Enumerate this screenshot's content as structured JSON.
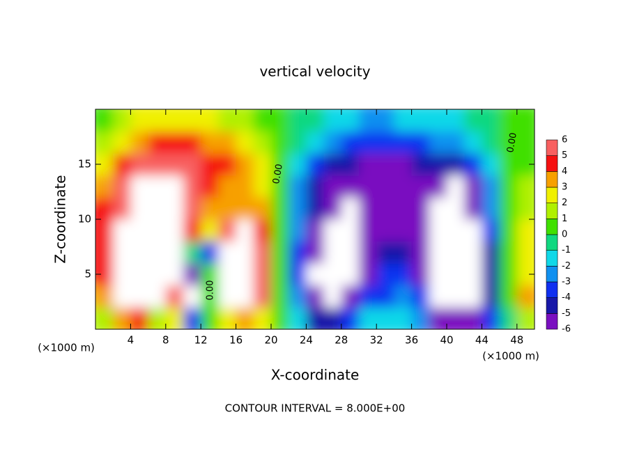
{
  "chart_data": {
    "type": "heatmap",
    "title": "vertical velocity",
    "x_label": "X-coordinate",
    "y_label": "Z-coordinate",
    "x_unit": "(×1000 m)",
    "footer": "CONTOUR INTERVAL = 8.000E+00",
    "contour_labels": [
      "0.00",
      "0.00",
      "0.00"
    ],
    "xlim": [
      0,
      50
    ],
    "ylim": [
      0,
      20
    ],
    "xticks": [
      4,
      8,
      12,
      16,
      20,
      24,
      28,
      32,
      36,
      40,
      44,
      48
    ],
    "yticks": [
      5,
      10,
      15
    ],
    "x": [
      1,
      3,
      5,
      7,
      9,
      11,
      13,
      15,
      17,
      19,
      21,
      23,
      25,
      27,
      29,
      31,
      33,
      35,
      37,
      39,
      41,
      43,
      45,
      47,
      49
    ],
    "y": [
      1,
      3,
      5,
      7,
      9,
      11,
      13,
      15,
      17,
      19
    ],
    "z": [
      [
        2,
        4,
        5,
        2,
        3,
        -3,
        1,
        3,
        4,
        3,
        0.5,
        -1,
        -4,
        -4,
        -3,
        -1,
        -1,
        -1,
        -2,
        -5,
        -5,
        -5,
        -3,
        0,
        2
      ],
      [
        4,
        7,
        8,
        8,
        6,
        -8,
        1,
        7,
        8,
        6,
        1,
        -2,
        -6,
        -7,
        -6,
        -3,
        -3,
        -2,
        -3,
        -7,
        -7,
        -7,
        -4,
        0.5,
        4
      ],
      [
        5,
        7,
        8,
        8,
        7,
        -5,
        1,
        7,
        8,
        6,
        1,
        -3,
        -7,
        -8,
        -8,
        -5,
        -3,
        -3,
        -5,
        -8,
        -8,
        -8,
        -4,
        0.5,
        3
      ],
      [
        5,
        7,
        8,
        8,
        7,
        0,
        -3,
        7,
        8,
        6,
        1,
        -3,
        -5,
        -8,
        -8,
        -5,
        -4,
        -4.5,
        -6,
        -8,
        -8,
        -8,
        -4,
        0.5,
        3
      ],
      [
        5,
        7,
        8,
        8,
        8,
        5,
        3,
        6,
        8,
        5,
        1,
        -2.5,
        -5,
        -7,
        -8,
        -5.5,
        -5,
        -5,
        -5,
        -8,
        -8,
        -7,
        -3,
        0.5,
        3
      ],
      [
        4.5,
        6,
        8,
        8,
        8,
        6,
        4,
        4,
        3.5,
        3.5,
        1,
        -2,
        -4.5,
        -5.5,
        -6.5,
        -5.5,
        -5.5,
        -5.5,
        -5,
        -7,
        -8,
        -6,
        -2.5,
        0.5,
        2
      ],
      [
        4,
        5.5,
        7,
        8,
        8,
        6,
        4.5,
        4,
        3.5,
        3,
        1,
        -2,
        -4,
        -5,
        -5.5,
        -5.5,
        -5.5,
        -5.5,
        -5.5,
        -6,
        -7,
        -5,
        -2,
        0.5,
        1.5
      ],
      [
        3,
        4.5,
        5.5,
        6,
        6,
        5.5,
        5,
        4.5,
        4,
        3,
        1,
        -1,
        -3,
        -4,
        -4.5,
        -5,
        -5,
        -5,
        -4.5,
        -4,
        -4,
        -3,
        -1,
        0.5,
        1
      ],
      [
        2,
        3,
        4,
        5,
        5,
        5,
        4,
        3.5,
        3,
        2,
        1,
        -0.5,
        -1.5,
        -2.5,
        -3,
        -3,
        -3,
        -3,
        -3,
        -2.5,
        -2,
        -1.5,
        -0.5,
        0.5,
        0.5
      ],
      [
        1,
        2,
        2.5,
        3,
        3,
        3,
        2.5,
        2,
        2,
        1,
        0.5,
        0,
        -0.5,
        -1,
        -1.5,
        -2,
        -2,
        -1.5,
        -1.5,
        -1,
        -1,
        -0.5,
        0,
        0.5,
        0.5
      ]
    ],
    "levels": [
      -6,
      -5,
      -4,
      -3,
      -2,
      -1,
      0,
      1,
      2,
      3,
      4,
      5,
      6
    ],
    "colors": [
      "#7a10c0",
      "#1818a8",
      "#1030f0",
      "#1090f0",
      "#10d8e8",
      "#10d880",
      "#40e000",
      "#b0f000",
      "#f0f000",
      "#f7a000",
      "#f51010",
      "#f86060"
    ],
    "out_of_range_color": "#ffffff"
  }
}
